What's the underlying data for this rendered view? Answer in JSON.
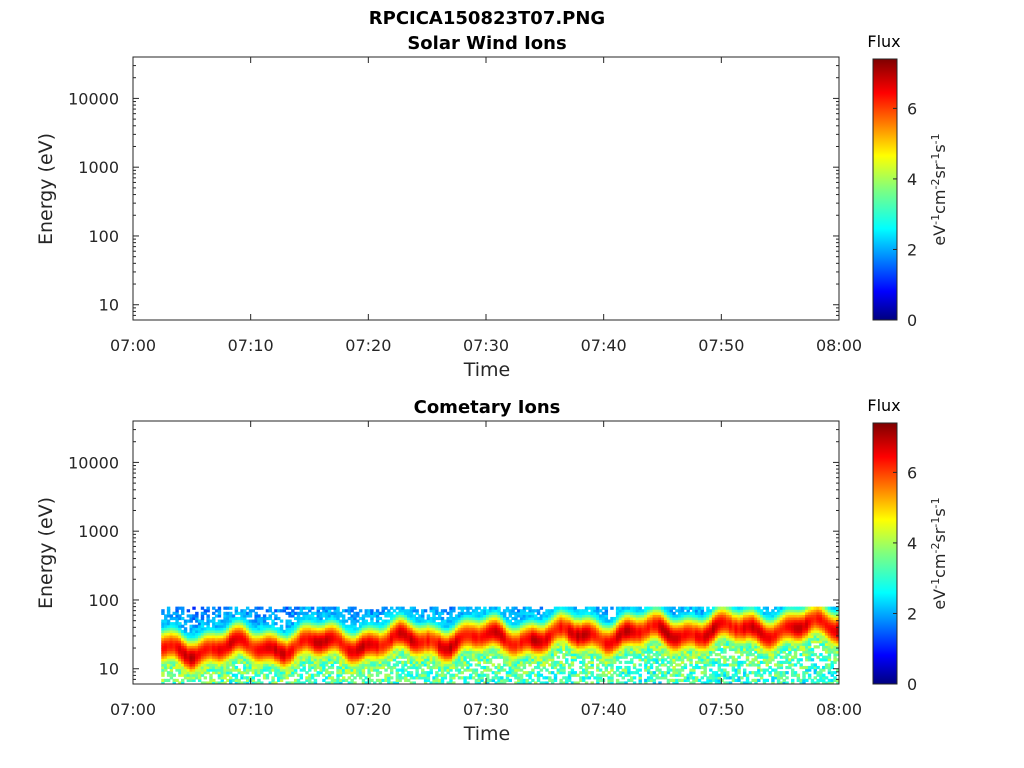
{
  "figure_title": "RPCICA150823T07.PNG",
  "chart_data": [
    {
      "type": "heatmap",
      "title": "Solar Wind Ions",
      "xlabel": "Time",
      "ylabel": "Energy (eV)",
      "xticks": [
        "07:00",
        "07:10",
        "07:20",
        "07:30",
        "07:40",
        "07:50",
        "08:00"
      ],
      "xlim_minutes": [
        0,
        60
      ],
      "yscale": "log",
      "yticks": [
        "10",
        "100",
        "1000",
        "10000"
      ],
      "ylim": [
        6,
        40000
      ],
      "colorbar": {
        "title": "Flux",
        "label": "eV-1cm-2sr-1s-1",
        "ticks": [
          "0",
          "2",
          "4",
          "6"
        ],
        "range": [
          0,
          7.4
        ],
        "colormap": "jet"
      },
      "data_present": false
    },
    {
      "type": "heatmap",
      "title": "Cometary Ions",
      "xlabel": "Time",
      "ylabel": "Energy (eV)",
      "xticks": [
        "07:00",
        "07:10",
        "07:20",
        "07:30",
        "07:40",
        "07:50",
        "08:00"
      ],
      "xlim_minutes": [
        0,
        60
      ],
      "yscale": "log",
      "yticks": [
        "10",
        "100",
        "1000",
        "10000"
      ],
      "ylim": [
        6,
        40000
      ],
      "colorbar": {
        "title": "Flux",
        "label": "eV-1cm-2sr-1s-1",
        "ticks": [
          "0",
          "2",
          "4",
          "6"
        ],
        "range": [
          0,
          7.4
        ],
        "colormap": "jet"
      },
      "data_present": true,
      "data_time_range_minutes": [
        2.4,
        60
      ],
      "data_energy_range_ev": [
        6,
        80
      ],
      "peak_flux_energy_ev": [
        18,
        40
      ],
      "peak_flux_value": 7
    }
  ]
}
